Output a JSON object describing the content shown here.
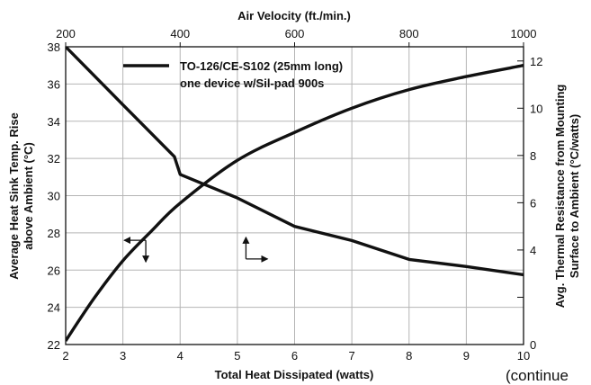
{
  "chart_data": {
    "type": "line",
    "top_axis": {
      "label": "Air Velocity (ft./min.)",
      "ticks": [
        200,
        400,
        600,
        800,
        1000
      ],
      "range": [
        200,
        1000
      ]
    },
    "bottom_axis": {
      "label": "Total Heat Dissipated (watts)",
      "ticks": [
        2,
        3,
        4,
        5,
        6,
        7,
        8,
        9,
        10
      ],
      "range": [
        2,
        10
      ]
    },
    "left_axis": {
      "label_line1": "Average Heat Sink Temp. Rise",
      "label_line2": "above Ambient (°C)",
      "ticks": [
        22,
        24,
        26,
        28,
        30,
        32,
        34,
        36,
        38
      ],
      "range": [
        22,
        38
      ]
    },
    "right_axis": {
      "label_line1": "Avg. Thermal Resistance from Mounting",
      "label_line2": "Surface to Ambient (°C/watts)",
      "ticks": [
        0,
        2,
        4,
        6,
        8,
        10,
        12
      ],
      "tick_labels": [
        "0",
        "",
        "4",
        "6",
        "8",
        "10",
        "12"
      ],
      "range": [
        0,
        12.6
      ]
    },
    "grid": true,
    "legend": {
      "position": "top-left",
      "line1": "TO-126/CE-S102 (25mm long)",
      "line2": "one device w/Sil-pad 900s"
    },
    "series": [
      {
        "x_axis": "bottom",
        "y_axis": "left",
        "x": [
          2,
          2.5,
          3,
          3.5,
          4,
          5,
          6,
          7,
          8,
          9,
          10
        ],
        "y": [
          22.2,
          24.5,
          26.5,
          28.1,
          29.6,
          31.9,
          33.4,
          34.7,
          35.7,
          36.4,
          37
        ]
      },
      {
        "x_axis": "top",
        "y_axis": "right",
        "x": [
          200,
          300,
          390,
          400,
          500,
          600,
          700,
          800,
          900,
          1000
        ],
        "y": [
          12.6,
          10.15,
          7.95,
          7.2,
          6.2,
          5.0,
          4.4,
          3.6,
          3.3,
          2.95
        ]
      }
    ],
    "annotations": [
      {
        "type": "arrow-pair",
        "anchor": [
          3.4,
          27.6
        ],
        "directions": [
          "left",
          "down"
        ]
      },
      {
        "type": "arrow-pair",
        "anchor": [
          5.15,
          26.6
        ],
        "directions": [
          "up",
          "right"
        ]
      }
    ]
  },
  "footer_fragment": "(continue"
}
